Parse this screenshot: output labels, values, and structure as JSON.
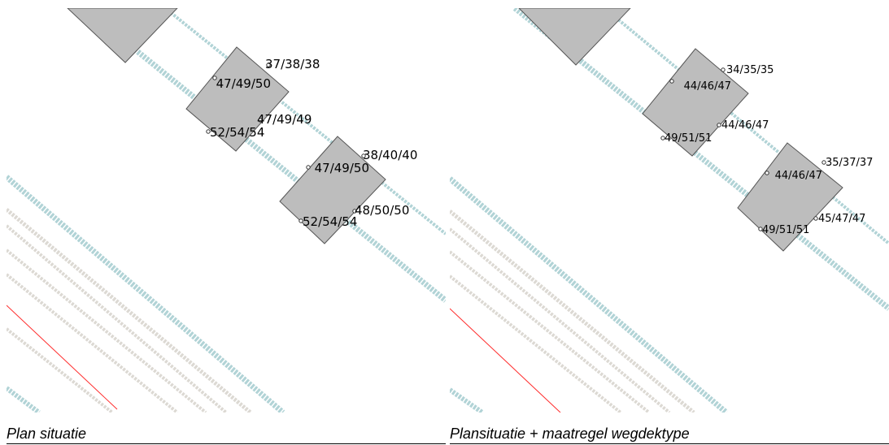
{
  "panels": [
    {
      "caption": "Plan situatie",
      "font_size": 15,
      "buildings": [
        {
          "labels": [
            "37/38/38",
            "47/49/50",
            "47/49/49",
            "52/54/54"
          ]
        },
        {
          "labels": [
            "38/40/40",
            "47/49/50",
            "48/50/50",
            "52/54/54"
          ]
        }
      ]
    },
    {
      "caption": "Plansituatie + maatregel wegdektype",
      "font_size": 13,
      "buildings": [
        {
          "labels": [
            "34/35/35",
            "44/46/47",
            "44/46/47",
            "49/51/51"
          ]
        },
        {
          "labels": [
            "35/37/37",
            "44/46/47",
            "45/47/47",
            "49/51/51"
          ]
        }
      ]
    }
  ],
  "colors": {
    "building_fill": "#bdbdbd",
    "road_line": "#a9cfd2",
    "rail_line": "#d9d5cf",
    "boundary_line": "#ff2a2a"
  }
}
